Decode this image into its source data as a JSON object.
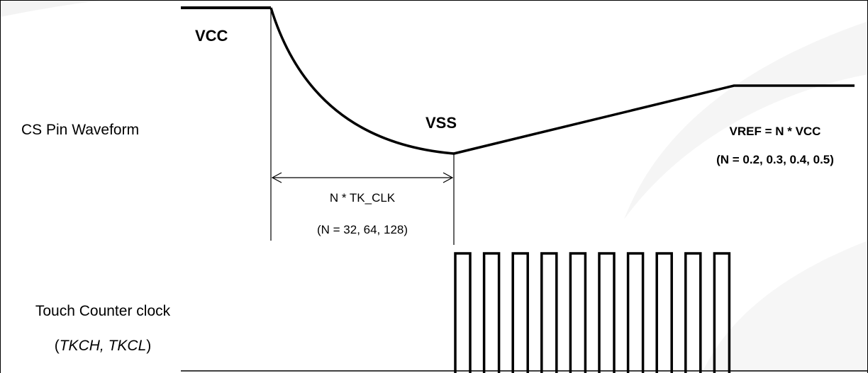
{
  "colors": {
    "line": "#000000",
    "frame": "#000000",
    "background": "#ffffff",
    "watermark": "#f3f3f3"
  },
  "labels": {
    "vcc": "VCC",
    "vss": "VSS",
    "cs_pin_waveform": "CS Pin Waveform",
    "vref_formula": "VREF = N * VCC",
    "vref_n_values": "(N = 0.2, 0.3, 0.4, 0.5)",
    "discharge_time": "N * TK_CLK",
    "discharge_n_values": "(N = 32, 64, 128)",
    "touch_counter_clock": "Touch Counter clock",
    "counter_regs_open": "(",
    "counter_regs": "TKCH, TKCL",
    "counter_regs_close": ")"
  },
  "clock": {
    "pulse_count": 10
  }
}
